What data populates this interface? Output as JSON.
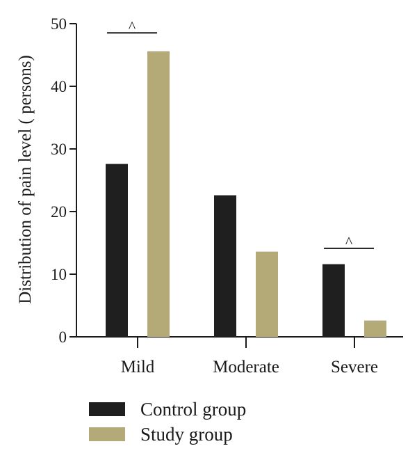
{
  "chart_data": {
    "type": "bar",
    "title": "",
    "xlabel": "",
    "ylabel": "Distribution of pain level ( persons)",
    "ylim": [
      0,
      50
    ],
    "yticks": [
      0,
      10,
      20,
      30,
      40,
      50
    ],
    "categories": [
      "Mild",
      "Moderate",
      "Severe"
    ],
    "series": [
      {
        "name": "Control group",
        "color": "#1f1f1f",
        "values": [
          27.6,
          22.6,
          11.6
        ]
      },
      {
        "name": "Study group",
        "color": "#b4aa78",
        "values": [
          45.6,
          13.6,
          2.6
        ]
      }
    ],
    "grid": false,
    "legend": "bottom-left",
    "annotations": [
      {
        "category": "Mild",
        "text": "^",
        "y": 49.3
      },
      {
        "category": "Severe",
        "text": "^",
        "y": 14.9
      }
    ]
  }
}
